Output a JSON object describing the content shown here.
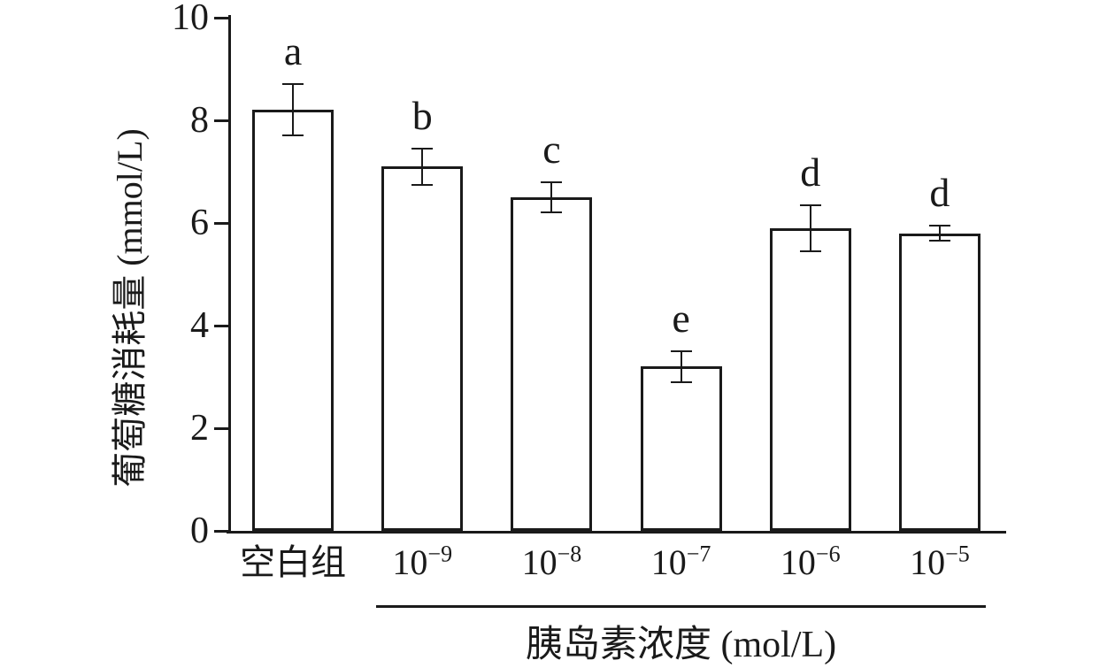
{
  "figure": {
    "background": "#ffffff",
    "ink_color": "#1a1a1a",
    "bar_fill": "#ffffff"
  },
  "chart_data": {
    "type": "bar",
    "title": "",
    "ylabel": "葡萄糖消耗量 (mmol/L)",
    "xlabel": "胰岛素浓度 (mol/L)",
    "ylim": [
      0,
      10
    ],
    "yticks": [
      0,
      2,
      4,
      6,
      8,
      10
    ],
    "grid": false,
    "legend": false,
    "error_bars": true,
    "categories": [
      {
        "text": "空白组"
      },
      {
        "base": "10",
        "exp": "−9"
      },
      {
        "base": "10",
        "exp": "−8"
      },
      {
        "base": "10",
        "exp": "−7"
      },
      {
        "base": "10",
        "exp": "−6"
      },
      {
        "base": "10",
        "exp": "−5"
      }
    ],
    "values": [
      8.2,
      7.1,
      6.5,
      3.2,
      5.9,
      5.8
    ],
    "errors": [
      0.5,
      0.35,
      0.3,
      0.3,
      0.45,
      0.15
    ],
    "significance_letters": [
      "a",
      "b",
      "c",
      "e",
      "d",
      "d"
    ],
    "group_underline": {
      "from_category_index": 1,
      "to_category_index": 5
    }
  }
}
